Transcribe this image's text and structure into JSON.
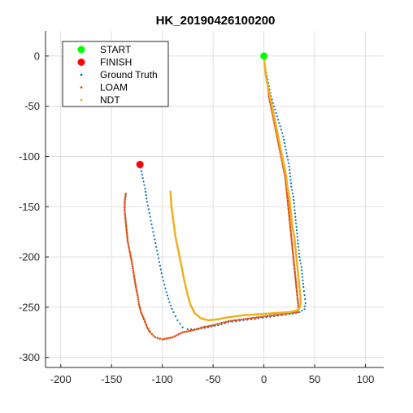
{
  "chart_data": {
    "type": "scatter",
    "title": "HK_20190426100200",
    "xlabel": "",
    "ylabel": "",
    "xlim": [
      -215,
      118
    ],
    "ylim": [
      -310,
      25
    ],
    "xticks": [
      -200,
      -150,
      -100,
      -50,
      0,
      50,
      100
    ],
    "yticks": [
      0,
      -50,
      -100,
      -150,
      -200,
      -250,
      -300
    ],
    "xtick_labels": [
      "-200",
      "-150",
      "-100",
      "-50",
      "0",
      "50",
      "100"
    ],
    "ytick_labels": [
      "0",
      "-50",
      "-100",
      "-150",
      "-200",
      "-250",
      "-300"
    ],
    "grid": true,
    "legend_position": "top-left",
    "markers": [
      {
        "name": "START",
        "color": "#00ff00",
        "x": 0,
        "y": 0
      },
      {
        "name": "FINISH",
        "color": "#ff0000",
        "x": -122,
        "y": -108
      }
    ],
    "series": [
      {
        "name": "Ground Truth",
        "style": "dots",
        "color": "#0072bd",
        "points": [
          [
            0,
            0
          ],
          [
            1,
            -10
          ],
          [
            3,
            -20
          ],
          [
            5,
            -30
          ],
          [
            7,
            -40
          ],
          [
            10,
            -50
          ],
          [
            13,
            -60
          ],
          [
            16,
            -70
          ],
          [
            19,
            -80
          ],
          [
            21,
            -90
          ],
          [
            23,
            -100
          ],
          [
            25,
            -110
          ],
          [
            26,
            -120
          ],
          [
            27,
            -130
          ],
          [
            29,
            -140
          ],
          [
            30,
            -150
          ],
          [
            31,
            -160
          ],
          [
            32,
            -170
          ],
          [
            33,
            -180
          ],
          [
            34,
            -190
          ],
          [
            35,
            -200
          ],
          [
            37,
            -210
          ],
          [
            38,
            -220
          ],
          [
            39,
            -230
          ],
          [
            40,
            -238
          ],
          [
            41,
            -246
          ],
          [
            40,
            -252
          ],
          [
            35,
            -255
          ],
          [
            25,
            -257
          ],
          [
            10,
            -259
          ],
          [
            -5,
            -261
          ],
          [
            -20,
            -263
          ],
          [
            -35,
            -265
          ],
          [
            -45,
            -268
          ],
          [
            -55,
            -270
          ],
          [
            -65,
            -272
          ],
          [
            -75,
            -272
          ],
          [
            -80,
            -270
          ],
          [
            -85,
            -263
          ],
          [
            -89,
            -255
          ],
          [
            -93,
            -245
          ],
          [
            -96,
            -235
          ],
          [
            -100,
            -220
          ],
          [
            -103,
            -205
          ],
          [
            -106,
            -190
          ],
          [
            -109,
            -175
          ],
          [
            -112,
            -160
          ],
          [
            -115,
            -145
          ],
          [
            -117,
            -132
          ],
          [
            -120,
            -118
          ],
          [
            -122,
            -108
          ]
        ]
      },
      {
        "name": "LOAM",
        "style": "dots",
        "color": "#d95319",
        "points": [
          [
            0,
            0
          ],
          [
            1,
            -10
          ],
          [
            2,
            -20
          ],
          [
            4,
            -30
          ],
          [
            5,
            -40
          ],
          [
            7,
            -50
          ],
          [
            9,
            -60
          ],
          [
            11,
            -70
          ],
          [
            13,
            -80
          ],
          [
            15,
            -90
          ],
          [
            17,
            -100
          ],
          [
            19,
            -110
          ],
          [
            21,
            -120
          ],
          [
            22,
            -130
          ],
          [
            23,
            -140
          ],
          [
            24,
            -150
          ],
          [
            25,
            -160
          ],
          [
            26,
            -170
          ],
          [
            27,
            -180
          ],
          [
            28,
            -190
          ],
          [
            29,
            -200
          ],
          [
            30,
            -210
          ],
          [
            31,
            -220
          ],
          [
            32,
            -230
          ],
          [
            33,
            -240
          ],
          [
            34,
            -250
          ],
          [
            33,
            -255
          ],
          [
            25,
            -256
          ],
          [
            10,
            -258
          ],
          [
            -5,
            -260
          ],
          [
            -20,
            -262
          ],
          [
            -35,
            -264
          ],
          [
            -50,
            -268
          ],
          [
            -60,
            -270
          ],
          [
            -70,
            -273
          ],
          [
            -80,
            -275
          ],
          [
            -90,
            -280
          ],
          [
            -100,
            -282
          ],
          [
            -107,
            -280
          ],
          [
            -112,
            -275
          ],
          [
            -115,
            -270
          ],
          [
            -118,
            -262
          ],
          [
            -121,
            -255
          ],
          [
            -123,
            -247
          ],
          [
            -124,
            -240
          ],
          [
            -126,
            -230
          ],
          [
            -128,
            -218
          ],
          [
            -130,
            -205
          ],
          [
            -132,
            -195
          ],
          [
            -134,
            -185
          ],
          [
            -135,
            -175
          ],
          [
            -136,
            -165
          ],
          [
            -137,
            -155
          ],
          [
            -137,
            -145
          ],
          [
            -136,
            -137
          ]
        ]
      },
      {
        "name": "NDT",
        "style": "line",
        "color": "#edb120",
        "points": [
          [
            0,
            0
          ],
          [
            1,
            -10
          ],
          [
            2,
            -20
          ],
          [
            4,
            -30
          ],
          [
            6,
            -40
          ],
          [
            8,
            -50
          ],
          [
            10,
            -60
          ],
          [
            12,
            -70
          ],
          [
            14,
            -80
          ],
          [
            16,
            -90
          ],
          [
            18,
            -100
          ],
          [
            20,
            -110
          ],
          [
            22,
            -120
          ],
          [
            23,
            -130
          ],
          [
            25,
            -140
          ],
          [
            26,
            -150
          ],
          [
            27,
            -160
          ],
          [
            28,
            -170
          ],
          [
            30,
            -180
          ],
          [
            31,
            -190
          ],
          [
            32,
            -200
          ],
          [
            33,
            -210
          ],
          [
            34,
            -220
          ],
          [
            35,
            -230
          ],
          [
            36,
            -240
          ],
          [
            36,
            -248
          ],
          [
            34,
            -253
          ],
          [
            25,
            -255
          ],
          [
            10,
            -256
          ],
          [
            -5,
            -257
          ],
          [
            -20,
            -258
          ],
          [
            -35,
            -260
          ],
          [
            -45,
            -262
          ],
          [
            -55,
            -263
          ],
          [
            -62,
            -261
          ],
          [
            -68,
            -256
          ],
          [
            -72,
            -248
          ],
          [
            -75,
            -238
          ],
          [
            -78,
            -225
          ],
          [
            -81,
            -210
          ],
          [
            -84,
            -195
          ],
          [
            -87,
            -180
          ],
          [
            -89,
            -165
          ],
          [
            -91,
            -150
          ],
          [
            -92,
            -135
          ]
        ]
      }
    ]
  }
}
